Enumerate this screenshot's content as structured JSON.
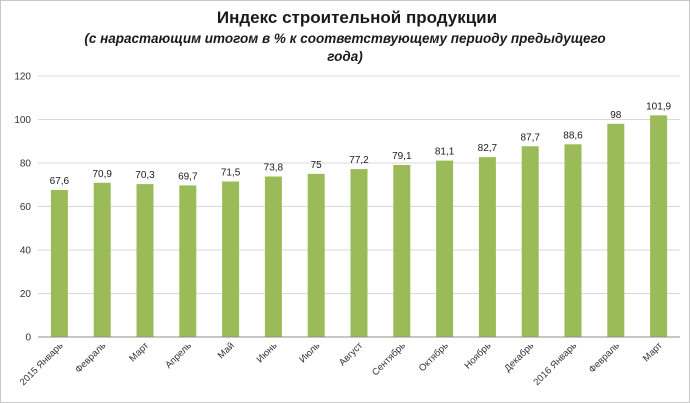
{
  "chart_data": {
    "type": "bar",
    "title": "Индекс строительной продукции",
    "subtitle": [
      "(с нарастающим итогом в % к соответствующему периоду предыдущего",
      "года)"
    ],
    "categories": [
      "2015 Январь",
      "Февраль",
      "Март",
      "Апрель",
      "Май",
      "Июнь",
      "Июль",
      "Август",
      "Сентябрь",
      "Октябрь",
      "Ноябрь",
      "Декабрь",
      "2016 Январь",
      "Февраль",
      "Март"
    ],
    "values": [
      67.6,
      70.9,
      70.3,
      69.7,
      71.5,
      73.8,
      75,
      77.2,
      79.1,
      81.1,
      82.7,
      87.7,
      88.6,
      98,
      101.9
    ],
    "data_labels": [
      "67,6",
      "70,9",
      "70,3",
      "69,7",
      "71,5",
      "73,8",
      "75",
      "77,2",
      "79,1",
      "81,1",
      "82,7",
      "87,7",
      "88,6",
      "98",
      "101,9"
    ],
    "ylim": [
      0,
      120
    ],
    "yticks": [
      "0",
      "20",
      "40",
      "60",
      "80",
      "100",
      "120"
    ],
    "xlabel": "",
    "ylabel": "",
    "bar_color": "#9bbb59",
    "grid": true,
    "legend": "none"
  }
}
